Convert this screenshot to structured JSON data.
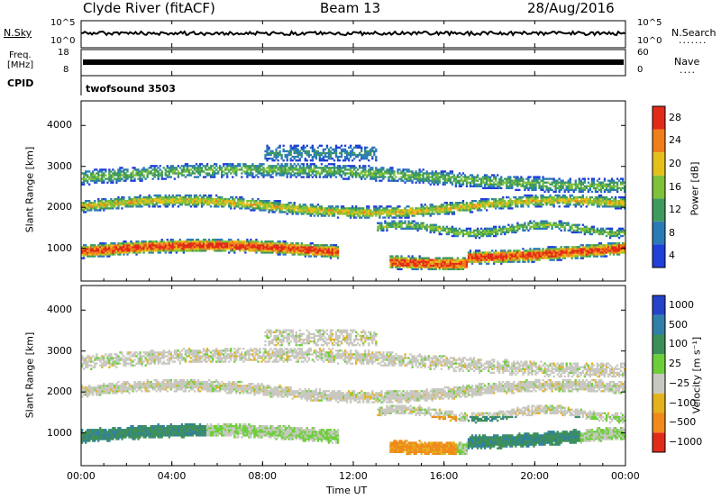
{
  "header": {
    "station": "Clyde River (fitACF)",
    "beam": "Beam 13",
    "date": "28/Aug/2016"
  },
  "noise_panel": {
    "left_label": "N.Sky",
    "right_label": "N.Search",
    "right_marker": ".......",
    "tick_top": "10^5",
    "tick_bottom": "10^0"
  },
  "freq_panel": {
    "left_label_line1": "Freq.",
    "left_label_line2": "[MHz]",
    "left_tick_top": "18",
    "left_tick_bottom": "8",
    "right_label": "Nave",
    "right_marker": "....",
    "right_tick_top": "60",
    "right_tick_bottom": "0"
  },
  "cpid": {
    "label": "CPID",
    "program": "twofsound 3503"
  },
  "chart_data": [
    {
      "type": "heatmap",
      "name": "power",
      "ylabel": "Slant Range [km]",
      "yticks": [
        1000,
        2000,
        3000,
        4000
      ],
      "ylim": [
        200,
        4600
      ],
      "xlim": [
        0,
        24
      ],
      "colorbar_label": "Power [dB]",
      "colorbar_ticks": [
        "4",
        "8",
        "12",
        "16",
        "20",
        "24",
        "28"
      ],
      "colors": [
        "#1f3fd8",
        "#2b7ab8",
        "#3f9a5e",
        "#7fc23a",
        "#e6c01a",
        "#f07e1a",
        "#e22a18"
      ]
    },
    {
      "type": "heatmap",
      "name": "velocity",
      "ylabel": "Slant Range [km]",
      "yticks": [
        1000,
        2000,
        3000,
        4000
      ],
      "ylim": [
        200,
        4600
      ],
      "xlim": [
        0,
        24
      ],
      "colorbar_label": "Velocity [m s⁻¹]",
      "colorbar_ticks": [
        "1000",
        "500",
        "100",
        "25",
        "−25",
        "−100",
        "−500",
        "−1000"
      ],
      "colors": [
        "#2343c8",
        "#2f7fa8",
        "#3d8f5a",
        "#6ccf3a",
        "#c8c8c0",
        "#e3b21d",
        "#f08a1a",
        "#e02b1a"
      ]
    }
  ],
  "xaxis": {
    "ticks": [
      "00:00",
      "04:00",
      "08:00",
      "12:00",
      "16:00",
      "20:00",
      "00:00"
    ],
    "label": "Time UT"
  }
}
